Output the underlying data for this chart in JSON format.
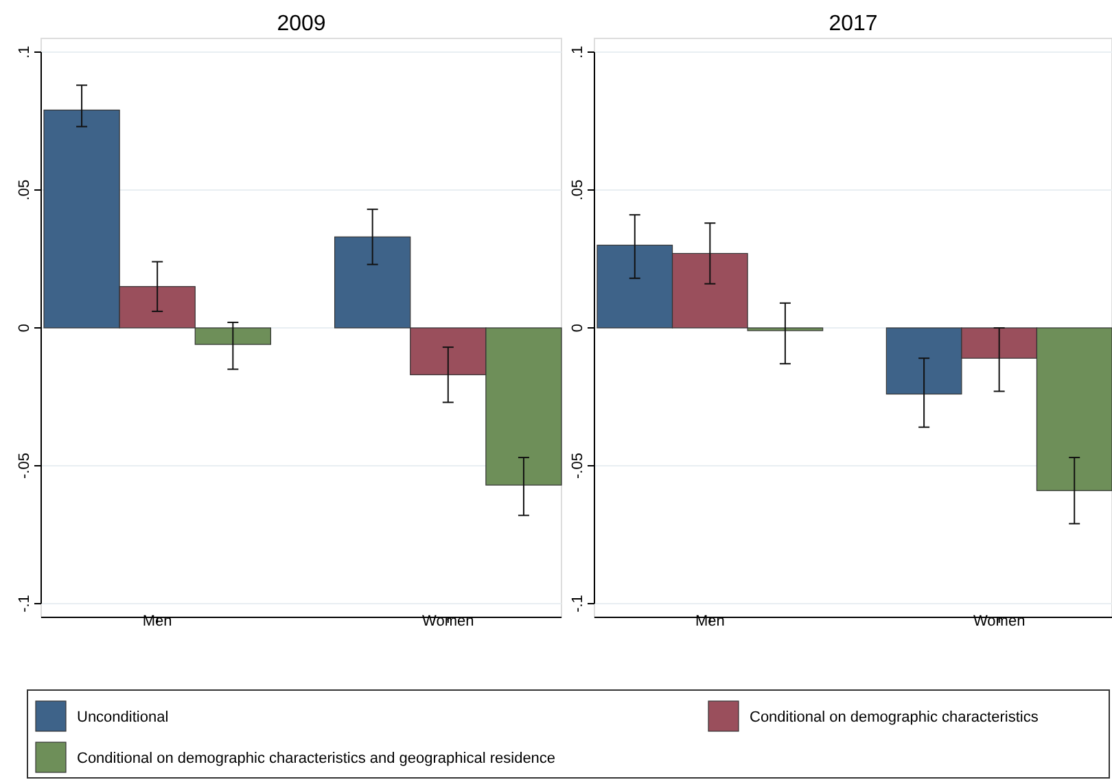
{
  "chart_data": [
    {
      "type": "bar",
      "title": "2009",
      "categories": [
        "Men",
        "Women"
      ],
      "ylim": [
        -0.1,
        0.1
      ],
      "yticks": [
        {
          "value": -0.1,
          "label": "-.1"
        },
        {
          "value": -0.05,
          "label": "-.05"
        },
        {
          "value": 0,
          "label": "0"
        },
        {
          "value": 0.05,
          "label": ".05"
        },
        {
          "value": 0.1,
          "label": ".1"
        }
      ],
      "grid": "y",
      "legend": "bottom",
      "series": [
        {
          "name": "Unconditional",
          "color": "#3e6389",
          "values": [
            0.079,
            0.033
          ],
          "errors": [
            [
              0.073,
              0.088
            ],
            [
              0.023,
              0.043
            ]
          ]
        },
        {
          "name": "Conditional on demographic characteristics",
          "color": "#9a4f5c",
          "values": [
            0.015,
            -0.017
          ],
          "errors": [
            [
              0.006,
              0.024
            ],
            [
              -0.027,
              -0.007
            ]
          ]
        },
        {
          "name": "Conditional on demographic characteristics and geographical residence",
          "color": "#6e8f59",
          "values": [
            -0.006,
            -0.057
          ],
          "errors": [
            [
              -0.015,
              0.002
            ],
            [
              -0.068,
              -0.047
            ]
          ]
        }
      ]
    },
    {
      "type": "bar",
      "title": "2017",
      "categories": [
        "Men",
        "Women"
      ],
      "ylim": [
        -0.1,
        0.1
      ],
      "yticks": [
        {
          "value": -0.1,
          "label": "-.1"
        },
        {
          "value": -0.05,
          "label": "-.05"
        },
        {
          "value": 0,
          "label": "0"
        },
        {
          "value": 0.05,
          "label": ".05"
        },
        {
          "value": 0.1,
          "label": ".1"
        }
      ],
      "grid": "y",
      "series": [
        {
          "color": "#3e6389",
          "values": [
            0.03,
            -0.024
          ],
          "errors": [
            [
              0.018,
              0.041
            ],
            [
              -0.036,
              -0.011
            ]
          ]
        },
        {
          "color": "#9a4f5c",
          "values": [
            0.027,
            -0.011
          ],
          "errors": [
            [
              0.016,
              0.038
            ],
            [
              -0.023,
              0
            ]
          ]
        },
        {
          "color": "#6e8f59",
          "values": [
            -0.001,
            -0.059
          ],
          "errors": [
            [
              -0.013,
              0.009
            ],
            [
              -0.071,
              -0.047
            ]
          ]
        }
      ]
    }
  ]
}
